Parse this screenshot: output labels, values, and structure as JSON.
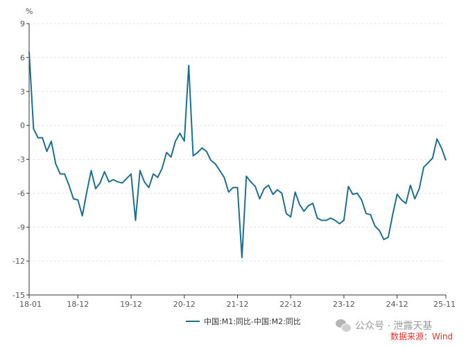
{
  "chart_data": {
    "type": "line",
    "unit": "%",
    "ylim": [
      -15,
      9
    ],
    "yticks": [
      9,
      6,
      3,
      0,
      -3,
      -6,
      -9,
      -12,
      -15
    ],
    "x_tick_labels": [
      "18-01",
      "18-12",
      "19-12",
      "20-12",
      "21-12",
      "22-12",
      "23-12",
      "24-12",
      "25-11"
    ],
    "x_start": "2018-01",
    "x_end": "2025-11",
    "grid": "horizontal dashed",
    "legend_position": "bottom",
    "color": "#1f6e8c",
    "series": [
      {
        "name": "中国:M1:同比-中国:M2:同比",
        "values": [
          6.5,
          -0.3,
          -1.1,
          -1.1,
          -2.3,
          -1.4,
          -3.4,
          -4.3,
          -4.3,
          -5.3,
          -6.5,
          -6.6,
          -8.0,
          -5.9,
          -4.0,
          -5.6,
          -5.1,
          -4.1,
          -5.0,
          -4.8,
          -5.0,
          -5.1,
          -4.7,
          -4.3,
          -8.4,
          -4.0,
          -5.0,
          -5.5,
          -4.3,
          -4.6,
          -3.8,
          -2.4,
          -2.8,
          -1.4,
          -0.7,
          -1.4,
          5.3,
          -2.7,
          -2.4,
          -2.0,
          -2.3,
          -3.1,
          -3.4,
          -4.0,
          -4.6,
          -5.9,
          -5.5,
          -5.5,
          -11.7,
          -4.5,
          -5.0,
          -5.4,
          -6.5,
          -5.6,
          -5.3,
          -6.1,
          -5.7,
          -6.0,
          -7.8,
          -8.1,
          -5.9,
          -7.0,
          -7.6,
          -7.1,
          -6.9,
          -8.2,
          -8.4,
          -8.4,
          -8.2,
          -8.4,
          -8.7,
          -8.4,
          -5.4,
          -6.1,
          -6.0,
          -6.6,
          -7.8,
          -7.9,
          -8.9,
          -9.3,
          -10.1,
          -9.9,
          -7.9,
          -6.1,
          -6.6,
          -6.9,
          -5.3,
          -6.5,
          -5.6,
          -3.7,
          -3.3,
          -2.9,
          -1.2,
          -2.0,
          -3.1
        ]
      }
    ]
  },
  "watermark": {
    "text": "公众号 · 泄露天基",
    "icon": "wechat-icon"
  },
  "source": "数据来源：Wind"
}
